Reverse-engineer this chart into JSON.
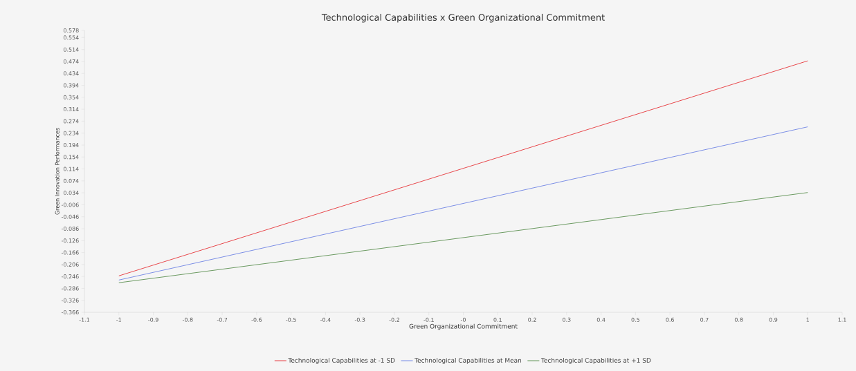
{
  "chart_data": {
    "type": "line",
    "title": "Technological Capabilities x Green Organizational Commitment",
    "xlabel": "Green Organizational Commitment",
    "ylabel": "Green Innovation Performances",
    "x": [
      -1,
      1
    ],
    "series": [
      {
        "name": "Technological Capabilities at -1 SD",
        "color": "#e8474b",
        "values": [
          -0.244,
          0.476
        ]
      },
      {
        "name": "Technological Capabilities at Mean",
        "color": "#7b8fe6",
        "values": [
          -0.258,
          0.255
        ]
      },
      {
        "name": "Technological Capabilities at +1 SD",
        "color": "#6a9a60",
        "values": [
          -0.267,
          0.035
        ]
      }
    ],
    "xlim": [
      -1.1,
      1.1
    ],
    "xticks": [
      -1.1,
      -1,
      -0.9,
      -0.8,
      -0.7,
      -0.6,
      -0.5,
      -0.4,
      -0.3,
      -0.2,
      -0.1,
      {
        "value": 0,
        "label": "-0"
      },
      0.1,
      0.2,
      0.3,
      0.4,
      0.5,
      0.6,
      0.7,
      0.8,
      0.9,
      1,
      1.1
    ],
    "ylim": [
      -0.366,
      0.578
    ],
    "yticks": [
      -0.366,
      -0.326,
      -0.286,
      -0.246,
      -0.206,
      -0.166,
      -0.126,
      -0.086,
      -0.046,
      -0.006,
      0.034,
      0.074,
      0.114,
      0.154,
      0.194,
      0.234,
      0.274,
      0.314,
      0.354,
      0.394,
      0.434,
      0.474,
      0.514,
      0.554,
      0.578
    ],
    "legend": "bottom",
    "grid": false,
    "marker": "none",
    "line_style": "solid"
  }
}
